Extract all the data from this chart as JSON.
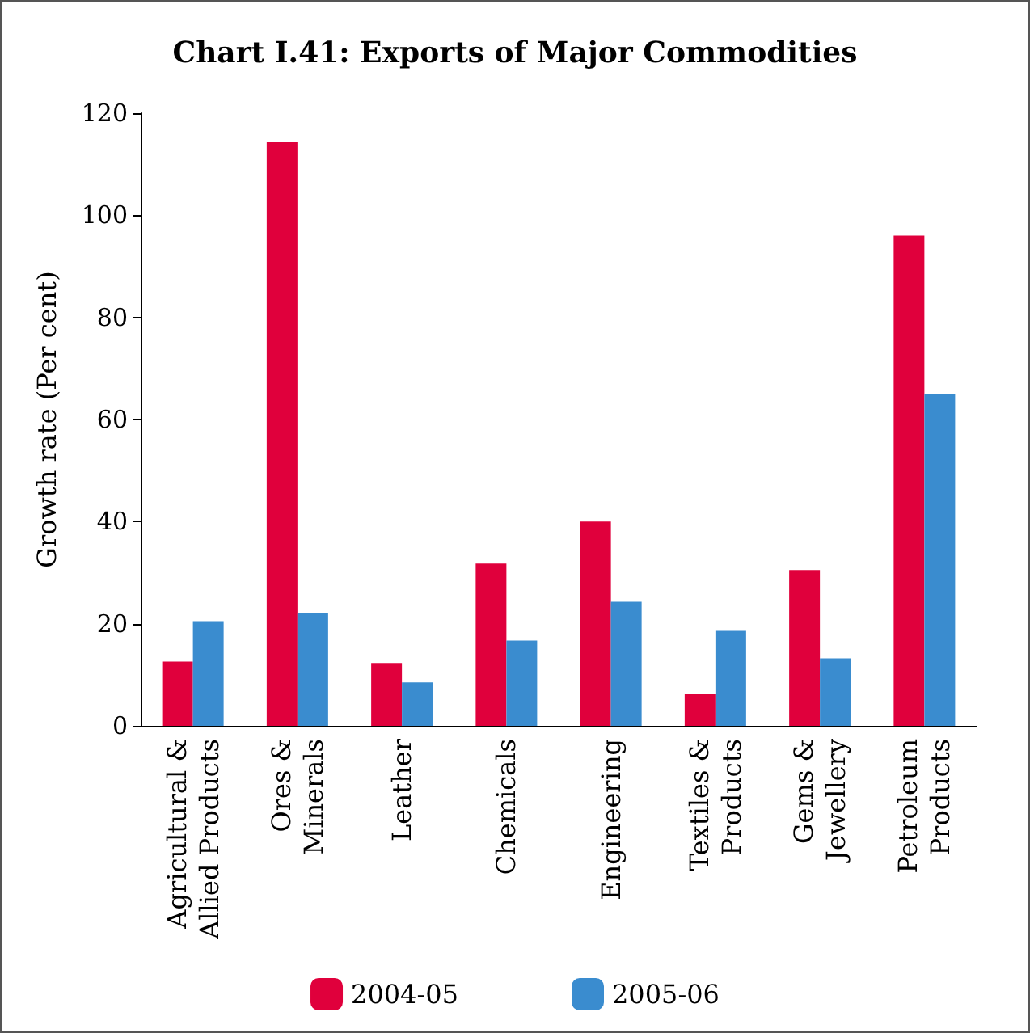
{
  "chart_data": {
    "type": "bar",
    "title": "Chart I.41: Exports of Major Commodities",
    "ylabel": "Growth rate (Per cent)",
    "categories": [
      "Agricultural &\nAllied Products",
      "Ores &\nMinerals",
      "Leather",
      "Chemicals",
      "Engineering",
      "Textiles &\nProducts",
      "Gems &\nJewellery",
      "Petroleum\nProducts"
    ],
    "series": [
      {
        "name": "2004-05",
        "color": "#e0003c",
        "values": [
          12.6,
          114.3,
          12.3,
          31.8,
          40,
          6.3,
          30.5,
          96
        ]
      },
      {
        "name": "2005-06",
        "color": "#3a8ccf",
        "values": [
          20.5,
          22,
          8.5,
          16.7,
          24.3,
          18.6,
          13.2,
          64.9
        ]
      }
    ],
    "ylim": [
      0,
      120
    ],
    "yticks": [
      0,
      20,
      40,
      60,
      80,
      100,
      120
    ],
    "grid": false,
    "legend": "bottom"
  }
}
